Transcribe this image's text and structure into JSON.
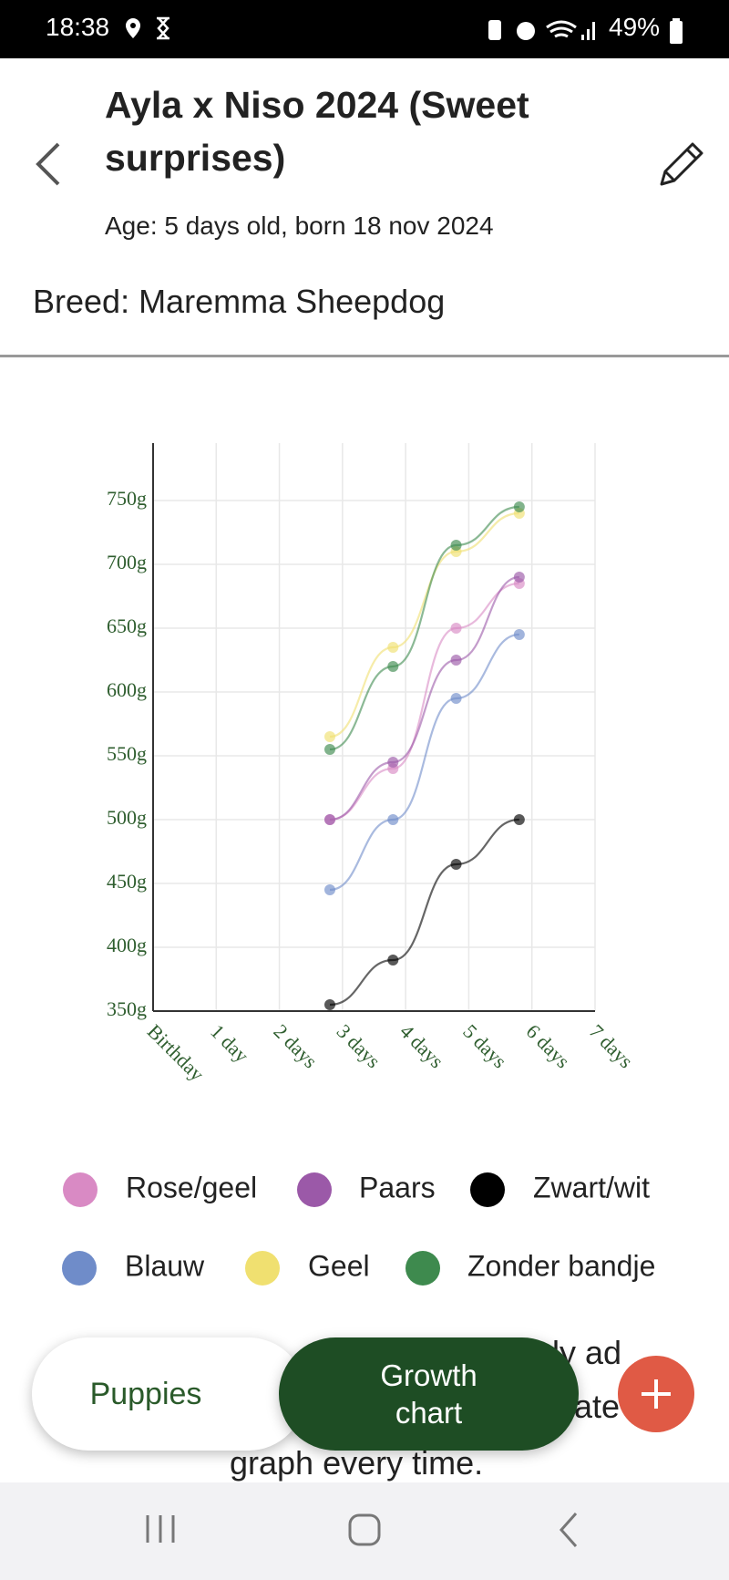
{
  "status_bar": {
    "time": "18:38",
    "battery": "49%"
  },
  "header": {
    "title": "Ayla x Niso 2024 (Sweet surprises)",
    "subtitle": "Age: 5 days old, born 18 nov 2024",
    "breed": "Breed: Maremma Sheepdog"
  },
  "chart_data": {
    "type": "line",
    "x": [
      2.8,
      3.8,
      4.8,
      5.8
    ],
    "xlim": [
      0,
      7
    ],
    "xticks": [
      {
        "value": 0,
        "label": "Birthday"
      },
      {
        "value": 1,
        "label": "1 day"
      },
      {
        "value": 2,
        "label": "2 days"
      },
      {
        "value": 3,
        "label": "3 days"
      },
      {
        "value": 4,
        "label": "4 days"
      },
      {
        "value": 5,
        "label": "5 days"
      },
      {
        "value": 6,
        "label": "6 days"
      },
      {
        "value": 7,
        "label": "7 days"
      }
    ],
    "ylim": [
      350,
      795
    ],
    "yticks": [
      {
        "value": 350,
        "label": "350g"
      },
      {
        "value": 400,
        "label": "400g"
      },
      {
        "value": 450,
        "label": "450g"
      },
      {
        "value": 500,
        "label": "500g"
      },
      {
        "value": 550,
        "label": "550g"
      },
      {
        "value": 600,
        "label": "600g"
      },
      {
        "value": 650,
        "label": "650g"
      },
      {
        "value": 700,
        "label": "700g"
      },
      {
        "value": 750,
        "label": "750g"
      }
    ],
    "grid": true,
    "series": [
      {
        "name": "Rose/geel",
        "color": "#d98ac4",
        "values": [
          500,
          540,
          650,
          685
        ]
      },
      {
        "name": "Paars",
        "color": "#9b59a8",
        "values": [
          500,
          545,
          625,
          690
        ]
      },
      {
        "name": "Zwart/wit",
        "color": "#000000",
        "values": [
          355,
          390,
          465,
          500
        ]
      },
      {
        "name": "Blauw",
        "color": "#6f8cc9",
        "values": [
          445,
          500,
          595,
          645
        ]
      },
      {
        "name": "Geel",
        "color": "#f0e070",
        "values": [
          565,
          635,
          710,
          740
        ]
      },
      {
        "name": "Zonder bandje",
        "color": "#3e8a4e",
        "values": [
          555,
          620,
          715,
          745
        ]
      }
    ]
  },
  "partial_text": [
    "ly ad",
    "ate",
    "graph every time."
  ],
  "tabs": [
    "Puppies",
    "Growth chart"
  ]
}
